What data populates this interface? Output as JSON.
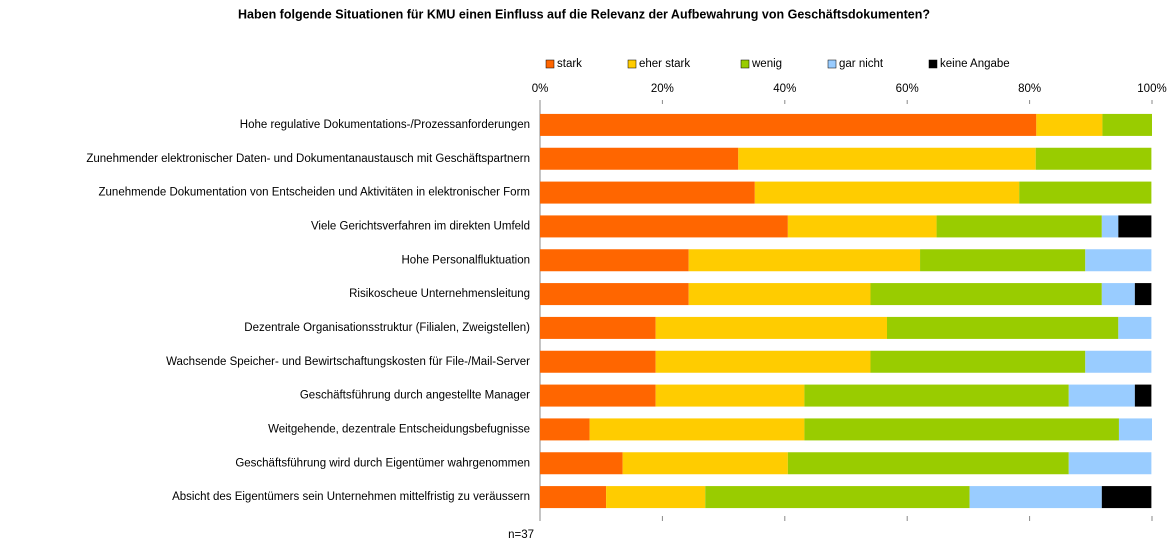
{
  "chart_data": {
    "type": "stacked_bar_horizontal",
    "title": "Haben folgende Situationen für KMU einen Einfluss auf die Relevanz der Aufbewahrung von Geschäftsdokumenten?",
    "annotation": "n=37",
    "categories": [
      "Hohe regulative Dokumentations-/Prozessanforderungen",
      "Zunehmender elektronischer Daten- und Dokumentanaustausch mit Geschäftspartnern",
      "Zunehmende Dokumentation von Entscheiden und Aktivitäten in elektronischer Form",
      "Viele Gerichtsverfahren im direkten Umfeld",
      "Hohe Personalfluktuation",
      "Risikoscheue Unternehmensleitung",
      "Dezentrale Organisationsstruktur (Filialen, Zweigstellen)",
      "Wachsende Speicher- und Bewirtschaftungskosten für File-/Mail-Server",
      "Geschäftsführung durch angestellte Manager",
      "Weitgehende, dezentrale Entscheidungsbefugnisse",
      "Geschäftsführung wird durch Eigentümer wahrgenommen",
      "Absicht des Eigentümers sein Unternehmen mittelfristig zu veräussern"
    ],
    "series": [
      {
        "name": "stark",
        "color": "#ff6600",
        "values": [
          81.1,
          32.4,
          35.1,
          40.5,
          24.3,
          24.3,
          18.9,
          18.9,
          18.9,
          8.1,
          13.5,
          10.8
        ]
      },
      {
        "name": "eher stark",
        "color": "#ffcc00",
        "values": [
          10.8,
          48.6,
          43.2,
          24.3,
          37.8,
          29.7,
          37.8,
          35.1,
          24.3,
          35.1,
          27.0,
          16.2
        ]
      },
      {
        "name": "wenig",
        "color": "#99cc00",
        "values": [
          8.1,
          18.9,
          21.6,
          27.0,
          27.0,
          37.8,
          37.8,
          35.1,
          43.2,
          51.4,
          45.9,
          43.2
        ]
      },
      {
        "name": "gar nicht",
        "color": "#99ccff",
        "values": [
          0,
          0,
          0,
          2.7,
          10.8,
          5.4,
          5.4,
          10.8,
          10.8,
          5.4,
          13.5,
          21.6
        ]
      },
      {
        "name": "keine Angabe",
        "color": "#000000",
        "values": [
          0,
          0,
          0,
          5.4,
          0,
          2.7,
          0,
          0,
          2.7,
          0,
          0,
          8.1
        ]
      }
    ],
    "xlim": [
      0,
      100
    ],
    "xticks": [
      {
        "value": 0,
        "label": "0%"
      },
      {
        "value": 20,
        "label": "20%"
      },
      {
        "value": 40,
        "label": "40%"
      },
      {
        "value": 60,
        "label": "60%"
      },
      {
        "value": 80,
        "label": "80%"
      },
      {
        "value": 100,
        "label": "100%"
      }
    ],
    "legend": "top"
  }
}
